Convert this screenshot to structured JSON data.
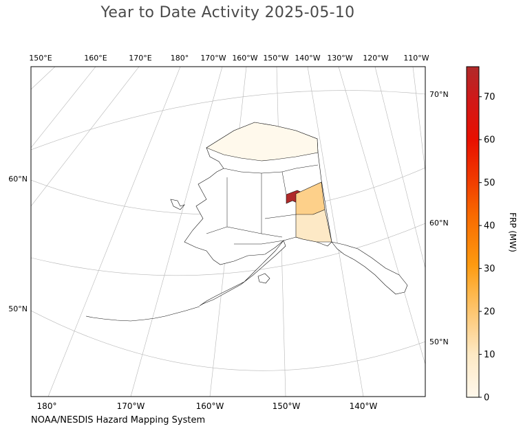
{
  "title": "Year to Date Activity 2025-05-10",
  "footer": "NOAA/NESDIS Hazard Mapping System",
  "map": {
    "region": "Alaska",
    "top_lon_labels": [
      "150°E",
      "160°E",
      "170°E",
      "180°",
      "170°W",
      "160°W",
      "150°W",
      "140°W",
      "130°W",
      "120°W",
      "110°W"
    ],
    "bottom_lon_labels": [
      "180°",
      "170°W",
      "160°W",
      "150°W",
      "140°W"
    ],
    "left_lat_labels": [
      "60°N",
      "50°N"
    ],
    "right_lat_labels": [
      "70°N",
      "60°N",
      "50°N"
    ],
    "gridlines": true,
    "colors": {
      "fire_high": "#b02a2a",
      "fire_mid": "#fdd08a",
      "fire_low": "#fde9c6",
      "fire_trace": "#fff9ec",
      "grid": "#b0b0b0"
    }
  },
  "colorbar": {
    "label": "FRP (MW)",
    "min": 0,
    "max": 77,
    "ticks": [
      "0",
      "10",
      "20",
      "30",
      "40",
      "50",
      "60",
      "70"
    ],
    "colormap": [
      "#fff8ec",
      "#fde9c4",
      "#fdd08a",
      "#fdb547",
      "#fd9a10",
      "#f86a00",
      "#f03a00",
      "#e81000",
      "#d01818",
      "#b02a2a"
    ]
  }
}
